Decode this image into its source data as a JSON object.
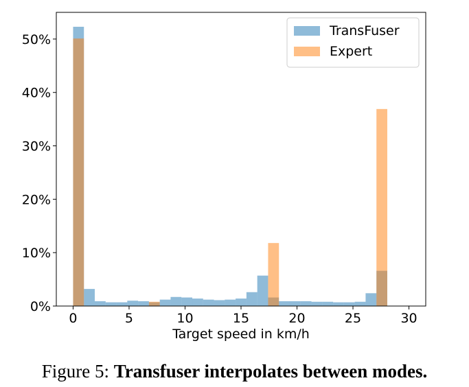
{
  "chart_data": {
    "type": "bar",
    "subtype": "overlaid-histogram",
    "xlabel": "Target speed in km/h",
    "ylabel": "",
    "xlim": [
      -1.5,
      31.5
    ],
    "ylim": [
      0,
      0.55
    ],
    "x_ticks": [
      0,
      5,
      10,
      15,
      20,
      25,
      30
    ],
    "y_ticks": [
      0,
      0.1,
      0.2,
      0.3,
      0.4,
      0.5
    ],
    "y_tick_labels": [
      "0%",
      "10%",
      "20%",
      "30%",
      "40%",
      "50%"
    ],
    "bin_edges": [
      0,
      0.9677,
      1.9355,
      2.9032,
      3.871,
      4.8387,
      5.8065,
      6.7742,
      7.7419,
      8.7097,
      9.6774,
      10.6452,
      11.6129,
      12.5806,
      13.5484,
      14.5161,
      15.4839,
      16.4516,
      17.4194,
      18.3871,
      19.3548,
      20.3226,
      21.2903,
      22.2581,
      23.2258,
      24.1935,
      25.1613,
      26.129,
      27.0968,
      28.0645,
      29.0323
    ],
    "series": [
      {
        "name": "TransFuser",
        "color": "#1f77b4",
        "alpha": 0.5,
        "values": [
          0.523,
          0.032,
          0.009,
          0.007,
          0.007,
          0.01,
          0.009,
          0.007,
          0.012,
          0.017,
          0.016,
          0.014,
          0.012,
          0.011,
          0.012,
          0.014,
          0.026,
          0.057,
          0.016,
          0.009,
          0.009,
          0.009,
          0.008,
          0.008,
          0.007,
          0.007,
          0.008,
          0.024,
          0.066,
          0.0
        ]
      },
      {
        "name": "Expert",
        "color": "#ff7f0e",
        "alpha": 0.5,
        "values": [
          0.501,
          0.0,
          0.0,
          0.0,
          0.0,
          0.0,
          0.0,
          0.008,
          0.0,
          0.0,
          0.0,
          0.0,
          0.0,
          0.0,
          0.0,
          0.0,
          0.0,
          0.0,
          0.118,
          0.0,
          0.0,
          0.0,
          0.0,
          0.0,
          0.0,
          0.0,
          0.0,
          0.0,
          0.369,
          0.0
        ]
      }
    ],
    "legend_position": "top-right",
    "grid": false
  },
  "caption": {
    "prefix": "Figure 5: ",
    "bold": "Transfuser interpolates between modes."
  }
}
